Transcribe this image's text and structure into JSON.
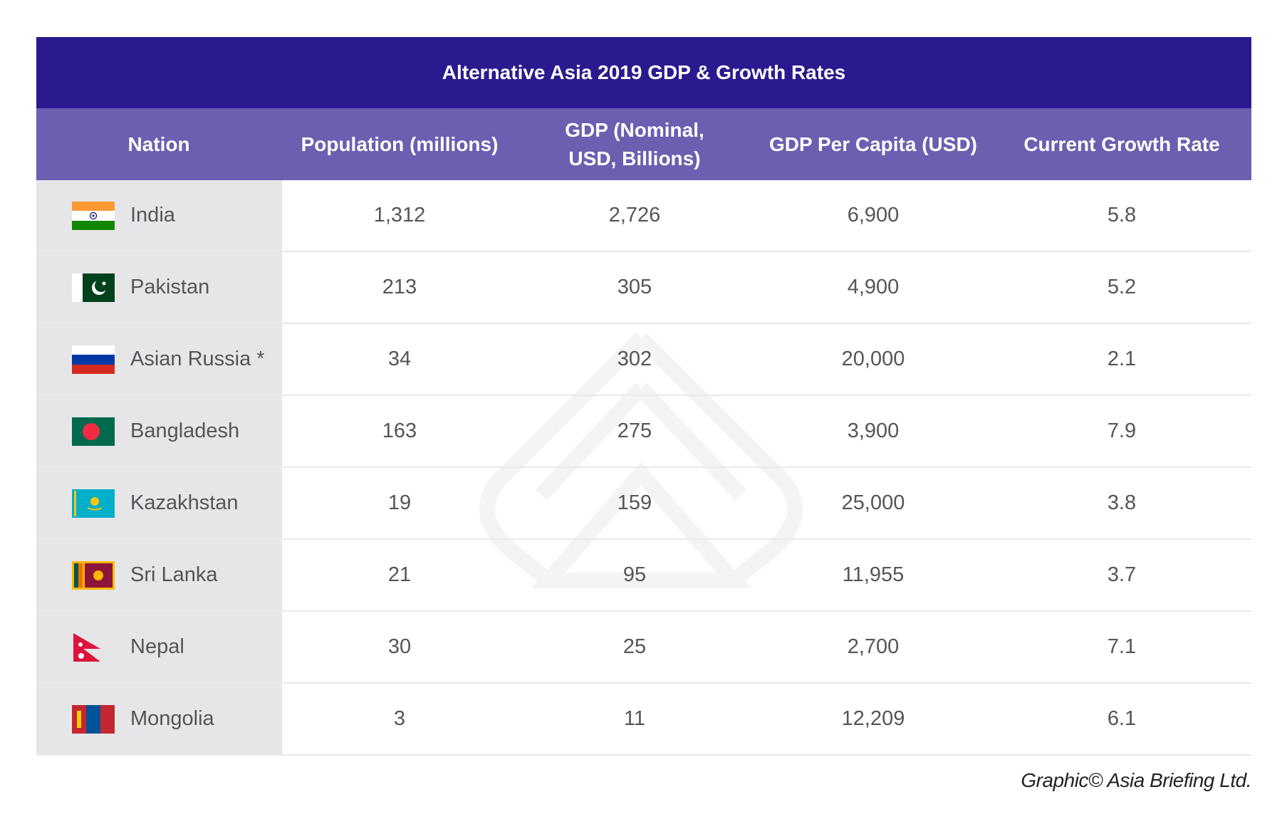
{
  "title": "Alternative Asia 2019 GDP & Growth Rates",
  "columns": [
    "Nation",
    "Population (millions)",
    "GDP  (Nominal,\nUSD, Billions)",
    "GDP Per Capita (USD)",
    "Current Growth Rate"
  ],
  "rows": [
    {
      "nation": "India",
      "flag": "india-flag",
      "population": "1,312",
      "gdp": "2,726",
      "per_capita": "6,900",
      "growth": "5.8"
    },
    {
      "nation": "Pakistan",
      "flag": "pakistan-flag",
      "population": "213",
      "gdp": "305",
      "per_capita": "4,900",
      "growth": "5.2"
    },
    {
      "nation": "Asian Russia *",
      "flag": "russia-flag",
      "population": "34",
      "gdp": "302",
      "per_capita": "20,000",
      "growth": "2.1"
    },
    {
      "nation": "Bangladesh",
      "flag": "bangladesh-flag",
      "population": "163",
      "gdp": "275",
      "per_capita": "3,900",
      "growth": "7.9"
    },
    {
      "nation": "Kazakhstan",
      "flag": "kazakhstan-flag",
      "population": "19",
      "gdp": "159",
      "per_capita": "25,000",
      "growth": "3.8"
    },
    {
      "nation": "Sri Lanka",
      "flag": "sri-lanka-flag",
      "population": "21",
      "gdp": "95",
      "per_capita": "11,955",
      "growth": "3.7"
    },
    {
      "nation": "Nepal",
      "flag": "nepal-flag",
      "population": "30",
      "gdp": "25",
      "per_capita": "2,700",
      "growth": "7.1"
    },
    {
      "nation": "Mongolia",
      "flag": "mongolia-flag",
      "population": "3",
      "gdp": "11",
      "per_capita": "12,209",
      "growth": "6.1"
    }
  ],
  "footer": "Graphic© Asia Briefing Ltd.",
  "colors": {
    "title_bg": "#291b8f",
    "header_bg": "#6a5fb0",
    "nation_bg": "#e6e6e8",
    "text": "#555555"
  }
}
